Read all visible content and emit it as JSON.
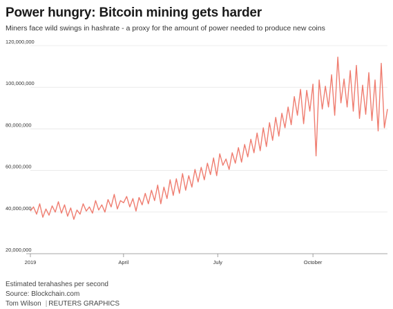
{
  "header": {
    "title": "Power hungry: Bitcoin mining gets harder",
    "subtitle": "Miners face wild swings in hashrate - a proxy for the amount of power needed to produce new coins"
  },
  "footer": {
    "note": "Estimated terahashes per second",
    "source": "Source: Blockchain.com",
    "author": "Tom Wilson",
    "credit": "REUTERS GRAPHICS"
  },
  "chart_data": {
    "type": "line",
    "ylabel": "Estimated terahashes per second",
    "ylim": [
      20000000,
      120000000
    ],
    "y_ticks": [
      "20,000,000",
      "40,000,000",
      "60,000,000",
      "80,000,000",
      "100,000,000",
      "120,000,000"
    ],
    "x_ticks": [
      "2019",
      "April",
      "July",
      "October"
    ],
    "grid": "horizontal",
    "colors": {
      "line": "#ef7c6f",
      "grid": "#dddddd"
    },
    "series": [
      {
        "x": [
          "2019-01-01",
          "2019-01-04",
          "2019-01-07",
          "2019-01-10",
          "2019-01-13",
          "2019-01-16",
          "2019-01-19",
          "2019-01-22",
          "2019-01-25",
          "2019-01-28",
          "2019-01-31",
          "2019-02-03",
          "2019-02-06",
          "2019-02-09",
          "2019-02-12",
          "2019-02-15",
          "2019-02-18",
          "2019-02-21",
          "2019-02-24",
          "2019-02-27",
          "2019-03-02",
          "2019-03-05",
          "2019-03-08",
          "2019-03-11",
          "2019-03-14",
          "2019-03-17",
          "2019-03-20",
          "2019-03-23",
          "2019-03-26",
          "2019-03-29",
          "2019-04-01",
          "2019-04-04",
          "2019-04-07",
          "2019-04-10",
          "2019-04-13",
          "2019-04-16",
          "2019-04-19",
          "2019-04-22",
          "2019-04-25",
          "2019-04-28",
          "2019-05-01",
          "2019-05-04",
          "2019-05-07",
          "2019-05-10",
          "2019-05-13",
          "2019-05-16",
          "2019-05-19",
          "2019-05-22",
          "2019-05-25",
          "2019-05-28",
          "2019-05-31",
          "2019-06-03",
          "2019-06-06",
          "2019-06-09",
          "2019-06-12",
          "2019-06-15",
          "2019-06-18",
          "2019-06-21",
          "2019-06-24",
          "2019-06-27",
          "2019-06-30",
          "2019-07-03",
          "2019-07-06",
          "2019-07-09",
          "2019-07-12",
          "2019-07-15",
          "2019-07-18",
          "2019-07-21",
          "2019-07-24",
          "2019-07-27",
          "2019-07-30",
          "2019-08-02",
          "2019-08-05",
          "2019-08-08",
          "2019-08-11",
          "2019-08-14",
          "2019-08-17",
          "2019-08-20",
          "2019-08-23",
          "2019-08-26",
          "2019-08-29",
          "2019-09-01",
          "2019-09-04",
          "2019-09-07",
          "2019-09-10",
          "2019-09-13",
          "2019-09-16",
          "2019-09-19",
          "2019-09-22",
          "2019-09-25",
          "2019-09-28",
          "2019-10-01",
          "2019-10-04",
          "2019-10-07",
          "2019-10-10",
          "2019-10-13",
          "2019-10-16",
          "2019-10-19",
          "2019-10-22",
          "2019-10-25",
          "2019-10-28",
          "2019-10-31",
          "2019-11-03",
          "2019-11-06",
          "2019-11-09",
          "2019-11-12",
          "2019-11-15",
          "2019-11-18",
          "2019-11-21",
          "2019-11-24",
          "2019-11-27",
          "2019-11-30",
          "2019-12-03",
          "2019-12-06",
          "2019-12-09",
          "2019-12-12"
        ],
        "values": [
          40500000,
          42500000,
          39000000,
          44000000,
          37500000,
          41500000,
          38500000,
          43000000,
          40000000,
          45000000,
          39500000,
          43500000,
          38000000,
          42000000,
          36500000,
          41000000,
          39000000,
          44000000,
          40500000,
          42500000,
          39500000,
          45500000,
          41000000,
          43500000,
          40000000,
          46000000,
          42500000,
          48500000,
          41500000,
          45500000,
          44500000,
          47500000,
          42500000,
          46500000,
          40500000,
          47000000,
          43500000,
          49000000,
          44000000,
          50500000,
          45500000,
          53000000,
          44000000,
          52000000,
          46500000,
          55500000,
          48000000,
          56000000,
          49000000,
          58500000,
          50500000,
          57500000,
          52000000,
          60500000,
          54500000,
          61500000,
          55500000,
          63500000,
          58000000,
          66000000,
          57500000,
          68000000,
          62500000,
          65500000,
          60500000,
          68500000,
          63500000,
          71000000,
          64000000,
          72500000,
          66500000,
          75000000,
          68500000,
          78000000,
          69500000,
          80500000,
          71500000,
          83000000,
          74500000,
          85500000,
          76500000,
          87500000,
          80500000,
          90500000,
          82000000,
          95500000,
          86500000,
          99000000,
          82500000,
          98500000,
          88500000,
          101500000,
          67000000,
          103500000,
          89500000,
          100500000,
          90500000,
          106000000,
          86500000,
          114500000,
          92500000,
          104000000,
          90500000,
          108000000,
          88500000,
          110500000,
          85000000,
          101000000,
          87000000,
          107000000,
          84000000,
          103500000,
          79000000,
          111500000,
          80500000,
          89500000
        ]
      }
    ]
  }
}
